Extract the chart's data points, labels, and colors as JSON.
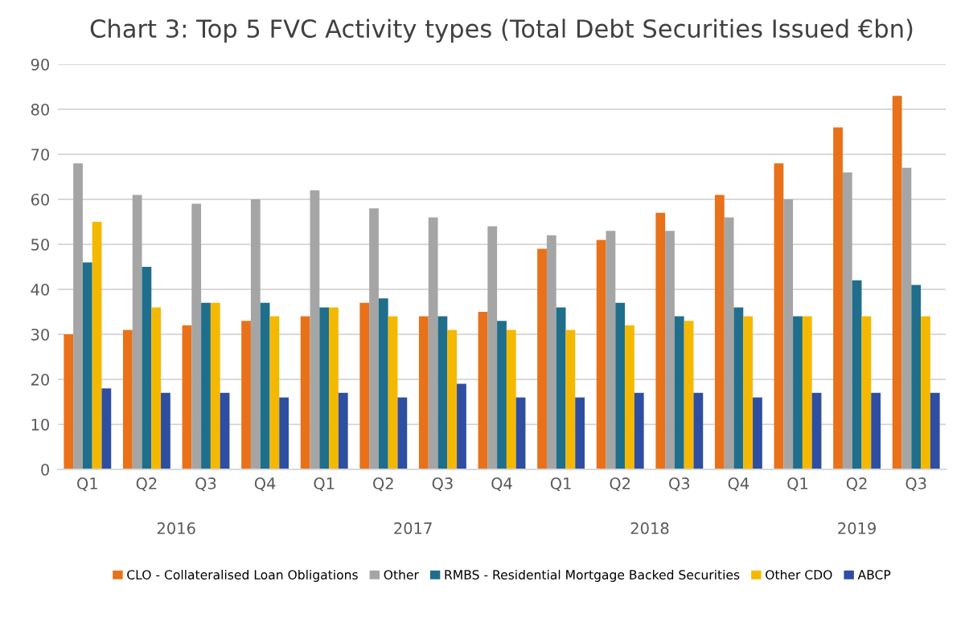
{
  "chart_data": {
    "type": "bar",
    "title": "Chart 3: Top 5 FVC Activity types (Total Debt Securities Issued €bn)",
    "categories": [
      "Q1",
      "Q2",
      "Q3",
      "Q4",
      "Q1",
      "Q2",
      "Q3",
      "Q4",
      "Q1",
      "Q2",
      "Q3",
      "Q4",
      "Q1",
      "Q2",
      "Q3"
    ],
    "annotations": [
      "2016",
      "2017",
      "2018",
      "2019"
    ],
    "series": [
      {
        "name": "CLO - Collateralised Loan Obligations",
        "color": "#e8711a",
        "values": [
          30,
          31,
          32,
          33,
          34,
          37,
          34,
          35,
          49,
          51,
          57,
          61,
          68,
          76,
          83
        ]
      },
      {
        "name": "Other",
        "color": "#a5a5a5",
        "values": [
          68,
          61,
          59,
          60,
          62,
          58,
          56,
          54,
          52,
          53,
          53,
          56,
          60,
          66,
          67
        ]
      },
      {
        "name": "RMBS - Residential Mortgage Backed Securities",
        "color": "#1f6e8c",
        "values": [
          46,
          45,
          37,
          37,
          36,
          38,
          34,
          33,
          36,
          37,
          34,
          36,
          34,
          42,
          41
        ]
      },
      {
        "name": "Other CDO",
        "color": "#f5b800",
        "values": [
          55,
          36,
          37,
          34,
          36,
          34,
          31,
          31,
          31,
          32,
          33,
          34,
          34,
          34,
          34
        ]
      },
      {
        "name": "ABCP",
        "color": "#2e4ea1",
        "values": [
          18,
          17,
          17,
          16,
          17,
          16,
          19,
          16,
          16,
          17,
          17,
          16,
          17,
          17,
          17
        ]
      }
    ],
    "ylim": [
      0,
      90
    ],
    "yticks": [
      0,
      10,
      20,
      30,
      40,
      50,
      60,
      70,
      80,
      90
    ],
    "grid": "y",
    "legend": "bottom"
  }
}
